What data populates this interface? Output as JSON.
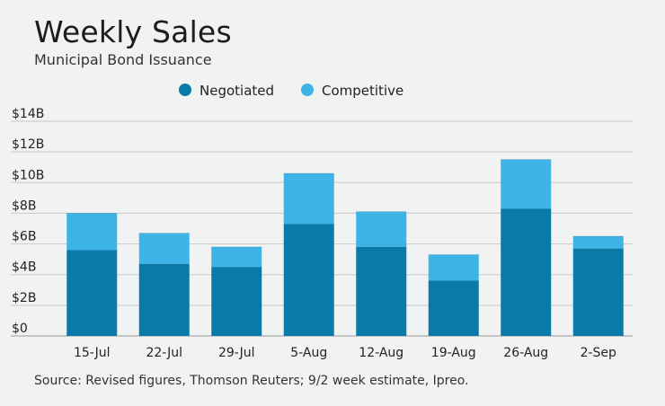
{
  "title": "Weekly Sales",
  "subtitle": "Municipal Bond Issuance",
  "source": "Source: Revised figures, Thomson Reuters; 9/2 week estimate, Ipreo.",
  "colors": {
    "background": "#f1f2f2",
    "negotiated": "#0a7aa8",
    "competitive": "#3db4e5",
    "grid": "#c8c9c9"
  },
  "chart_data": {
    "type": "bar",
    "stacked": true,
    "title": "Weekly Sales",
    "subtitle": "Municipal Bond Issuance",
    "xlabel": "",
    "ylabel": "",
    "unit": "B",
    "ylim": [
      0,
      14
    ],
    "yticks": [
      0,
      2,
      4,
      6,
      8,
      10,
      12,
      14
    ],
    "ytick_labels": [
      "$0",
      "$2B",
      "$4B",
      "$6B",
      "$8B",
      "$10B",
      "$12B",
      "$14B"
    ],
    "grid": true,
    "legend_position": "top-center",
    "categories": [
      "15-Jul",
      "22-Jul",
      "29-Jul",
      "5-Aug",
      "12-Aug",
      "19-Aug",
      "26-Aug",
      "2-Sep"
    ],
    "series": [
      {
        "name": "Negotiated",
        "color": "#0a7aa8",
        "values": [
          5.6,
          4.7,
          4.5,
          7.3,
          5.8,
          3.6,
          8.3,
          5.7
        ]
      },
      {
        "name": "Competitive",
        "color": "#3db4e5",
        "values": [
          2.4,
          2.0,
          1.3,
          3.3,
          2.3,
          1.7,
          3.2,
          0.8
        ]
      }
    ]
  }
}
